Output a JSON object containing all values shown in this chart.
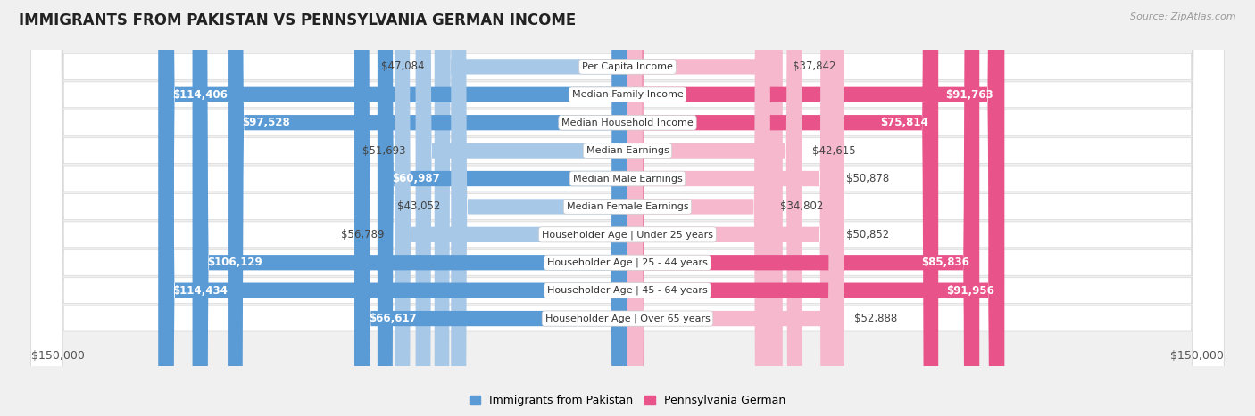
{
  "title": "IMMIGRANTS FROM PAKISTAN VS PENNSYLVANIA GERMAN INCOME",
  "source": "Source: ZipAtlas.com",
  "categories": [
    "Per Capita Income",
    "Median Family Income",
    "Median Household Income",
    "Median Earnings",
    "Median Male Earnings",
    "Median Female Earnings",
    "Householder Age | Under 25 years",
    "Householder Age | 25 - 44 years",
    "Householder Age | 45 - 64 years",
    "Householder Age | Over 65 years"
  ],
  "pakistan_values": [
    47084,
    114406,
    97528,
    51693,
    60987,
    43052,
    56789,
    106129,
    114434,
    66617
  ],
  "pennsylvania_values": [
    37842,
    91763,
    75814,
    42615,
    50878,
    34802,
    50852,
    85836,
    91956,
    52888
  ],
  "pakistan_labels": [
    "$47,084",
    "$114,406",
    "$97,528",
    "$51,693",
    "$60,987",
    "$43,052",
    "$56,789",
    "$106,129",
    "$114,434",
    "$66,617"
  ],
  "pennsylvania_labels": [
    "$37,842",
    "$91,763",
    "$75,814",
    "$42,615",
    "$50,878",
    "$34,802",
    "$50,852",
    "$85,836",
    "$91,956",
    "$52,888"
  ],
  "pakistan_color_light": "#a8c8e8",
  "pakistan_color_dark": "#5b9bd5",
  "pennsylvania_color_light": "#f5b8cc",
  "pennsylvania_color_dark": "#e8538a",
  "max_value": 150000,
  "legend_pakistan": "Immigrants from Pakistan",
  "legend_pennsylvania": "Pennsylvania German",
  "background_color": "#f0f0f0",
  "row_bg_color": "#fafafa",
  "row_border_color": "#d8d8d8",
  "label_fontsize": 8.5,
  "title_fontsize": 12,
  "category_fontsize": 8,
  "inside_threshold": 60000,
  "pa_inside_threshold": 60000
}
